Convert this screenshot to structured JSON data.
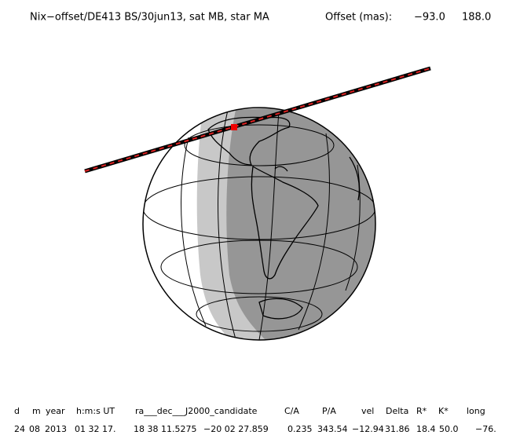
{
  "header": {
    "title": "Nix−offset/DE413 BS/30jun13, sat MB, star MA",
    "offset_label": "Offset (mas):",
    "offset_values": [
      "−93.0",
      "188.0"
    ]
  },
  "table": {
    "headers": [
      "d",
      "m",
      "year",
      "h:m:s UT",
      "ra___dec___J2000_candidate",
      "C/A",
      "P/A",
      "vel",
      "Delta",
      "R*",
      "K*",
      "long"
    ],
    "rows": [
      [
        "24",
        "08",
        "2013",
        "01 32 17.",
        "18 38 11.5275",
        "−20 02 27.859",
        "0.235",
        "343.54",
        "−12.94",
        "31.86",
        "18.4",
        "50.0",
        "−76."
      ]
    ]
  }
}
